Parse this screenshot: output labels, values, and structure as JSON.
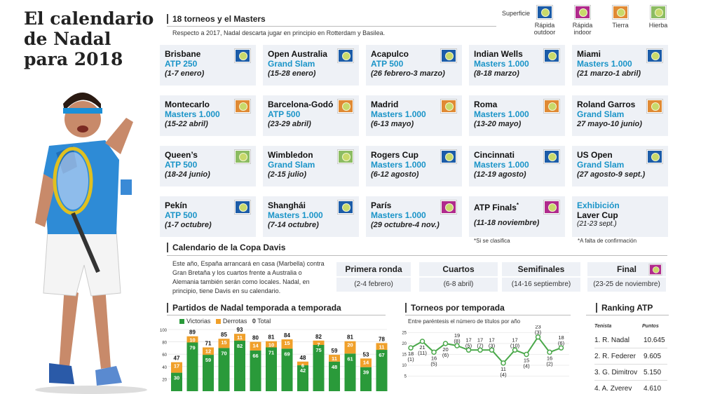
{
  "title": {
    "line1": "El calendario",
    "line2": "de Nadal",
    "line3": "para 2018"
  },
  "tournaments": {
    "heading": "18 torneos y el Masters",
    "subheading": "Respecto a 2017, Nadal descarta jugar en principio en Rotterdam y Basilea.",
    "surface_label": "Superficie",
    "surfaces": [
      {
        "key": "hard-out",
        "label1": "Rápida",
        "label2": "outdoor",
        "color": "#1c5ca8"
      },
      {
        "key": "hard-in",
        "label1": "Rápida",
        "label2": "indoor",
        "color": "#b02a8c"
      },
      {
        "key": "clay",
        "label1": "Tierra",
        "label2": "",
        "color": "#e08a34"
      },
      {
        "key": "grass",
        "label1": "Hierba",
        "label2": "",
        "color": "#8cbc62"
      }
    ],
    "items": [
      {
        "name": "Brisbane",
        "cat": "ATP 250",
        "dates": "(1-7 enero)",
        "surface": "hard-out"
      },
      {
        "name": "Open Australia",
        "cat": "Grand Slam",
        "dates": "(15-28 enero)",
        "surface": "hard-out"
      },
      {
        "name": "Acapulco",
        "cat": "ATP 500",
        "dates": "(26 febrero-3 marzo)",
        "surface": "hard-out"
      },
      {
        "name": "Indian Wells",
        "cat": "Masters 1.000",
        "dates": "(8-18 marzo)",
        "surface": "hard-out"
      },
      {
        "name": "Miami",
        "cat": "Masters 1.000",
        "dates": "(21 marzo-1 abril)",
        "surface": "hard-out"
      },
      {
        "name": "Montecarlo",
        "cat": "Masters 1.000",
        "dates": "(15-22 abril)",
        "surface": "clay"
      },
      {
        "name": "Barcelona-Godó",
        "cat": "ATP 500",
        "dates": "(23-29 abril)",
        "surface": "clay"
      },
      {
        "name": "Madrid",
        "cat": "Masters 1.000",
        "dates": "(6-13 mayo)",
        "surface": "clay"
      },
      {
        "name": "Roma",
        "cat": "Masters 1.000",
        "dates": "(13-20 mayo)",
        "surface": "clay"
      },
      {
        "name": "Roland Garros",
        "cat": "Grand Slam",
        "dates": "27 mayo-10 junio)",
        "surface": "clay"
      },
      {
        "name": "Queen’s",
        "cat": "ATP 500",
        "dates": "(18-24 junio)",
        "surface": "grass"
      },
      {
        "name": "Wimbledon",
        "cat": "Grand Slam",
        "dates": "(2-15 julio)",
        "surface": "grass"
      },
      {
        "name": "Rogers Cup",
        "cat": "Masters 1.000",
        "dates": "(6-12 agosto)",
        "surface": "hard-out"
      },
      {
        "name": "Cincinnati",
        "cat": "Masters 1.000",
        "dates": "(12-19 agosto)",
        "surface": "hard-out"
      },
      {
        "name": "US Open",
        "cat": "Grand Slam",
        "dates": "(27 agosto-9 sept.)",
        "surface": "hard-out"
      },
      {
        "name": "Pekín",
        "cat": "ATP 500",
        "dates": "(1-7 octubre)",
        "surface": "hard-out"
      },
      {
        "name": "Shanghái",
        "cat": "Masters 1.000",
        "dates": "(7-14 octubre)",
        "surface": "hard-out"
      },
      {
        "name": "París",
        "cat": "Masters 1.000",
        "dates": "(29 octubre-4 nov.)",
        "surface": "hard-in"
      },
      {
        "name": "ATP Finals",
        "cat": "",
        "dates": "(11-18 noviembre)",
        "surface": "hard-in",
        "star": "*"
      }
    ],
    "laver": {
      "top": "Exhibición",
      "name": "Laver Cup",
      "dates": "(21-23 sept.)"
    },
    "note_finals": "*Si se clasifica",
    "note_laver": "*A falta de confirmación"
  },
  "davis": {
    "heading": "Calendario de la Copa Davis",
    "text": "Este año, España arrancará en casa (Marbella) contra Gran Bretaña y los cuartos frente a Australia o Alemania también serán como locales. Nadal, en principio, tiene Davis en su calendario.",
    "rounds": [
      {
        "name": "Primera ronda",
        "dates": "(2-4 febrero)"
      },
      {
        "name": "Cuartos",
        "dates": "(6-8 abril)"
      },
      {
        "name": "Semifinales",
        "dates": "(14-16 septiembre)"
      },
      {
        "name": "Final",
        "dates": "(23-25 de noviembre)",
        "surface": "hard-in"
      }
    ]
  },
  "matches_chart": {
    "heading": "Partidos de Nadal temporada a temporada",
    "legend": {
      "wins": "Victorias",
      "losses": "Derrotas",
      "total_value": "0",
      "total": "Total"
    },
    "colors": {
      "wins": "#2a9a3a",
      "losses": "#f0a02a"
    }
  },
  "titles_chart": {
    "heading": "Torneos por temporada",
    "subheading": "Entre paréntesis el número de títulos por año",
    "color": "#4aa84a"
  },
  "ranking": {
    "heading": "Ranking ATP",
    "col_player": "Tenista",
    "col_points": "Puntos",
    "rows": [
      {
        "player": "1. R. Nadal",
        "points": "10.645"
      },
      {
        "player": "2. R. Federer",
        "points": "9.605"
      },
      {
        "player": "3. G. Dimitrov",
        "points": "5.150"
      },
      {
        "player": "4. A. Zverev",
        "points": "4.610"
      }
    ]
  },
  "chart_data": [
    {
      "type": "bar",
      "title": "Partidos de Nadal temporada a temporada",
      "ylim": [
        0,
        100
      ],
      "yticks": [
        20,
        40,
        60,
        80,
        100
      ],
      "series": [
        {
          "name": "Victorias",
          "values": [
            30,
            79,
            59,
            70,
            82,
            66,
            71,
            69,
            42,
            75,
            48,
            61,
            39,
            67
          ]
        },
        {
          "name": "Derrotas",
          "values": [
            17,
            10,
            12,
            15,
            11,
            14,
            10,
            15,
            6,
            7,
            11,
            20,
            14,
            11
          ]
        }
      ],
      "totals": [
        47,
        89,
        71,
        85,
        93,
        80,
        81,
        84,
        48,
        82,
        59,
        81,
        53,
        78
      ]
    },
    {
      "type": "line",
      "title": "Torneos por temporada",
      "ylim": [
        0,
        25
      ],
      "yticks": [
        5,
        10,
        15,
        20,
        25
      ],
      "values": [
        18,
        21,
        16,
        20,
        19,
        17,
        17,
        17,
        11,
        17,
        15,
        23,
        16,
        18
      ],
      "labels": [
        "18",
        "21",
        "16",
        "20",
        "19",
        "17",
        "17",
        "17",
        "11",
        "17",
        "15",
        "23",
        "16",
        "18"
      ],
      "titles": [
        "(1)",
        "(11)",
        "(5)",
        "(6)",
        "(8)",
        "(5)",
        "(7)",
        "(3)",
        "(4)",
        "(10)",
        "(4)",
        "(3)",
        "(2)",
        "(6)"
      ]
    }
  ]
}
